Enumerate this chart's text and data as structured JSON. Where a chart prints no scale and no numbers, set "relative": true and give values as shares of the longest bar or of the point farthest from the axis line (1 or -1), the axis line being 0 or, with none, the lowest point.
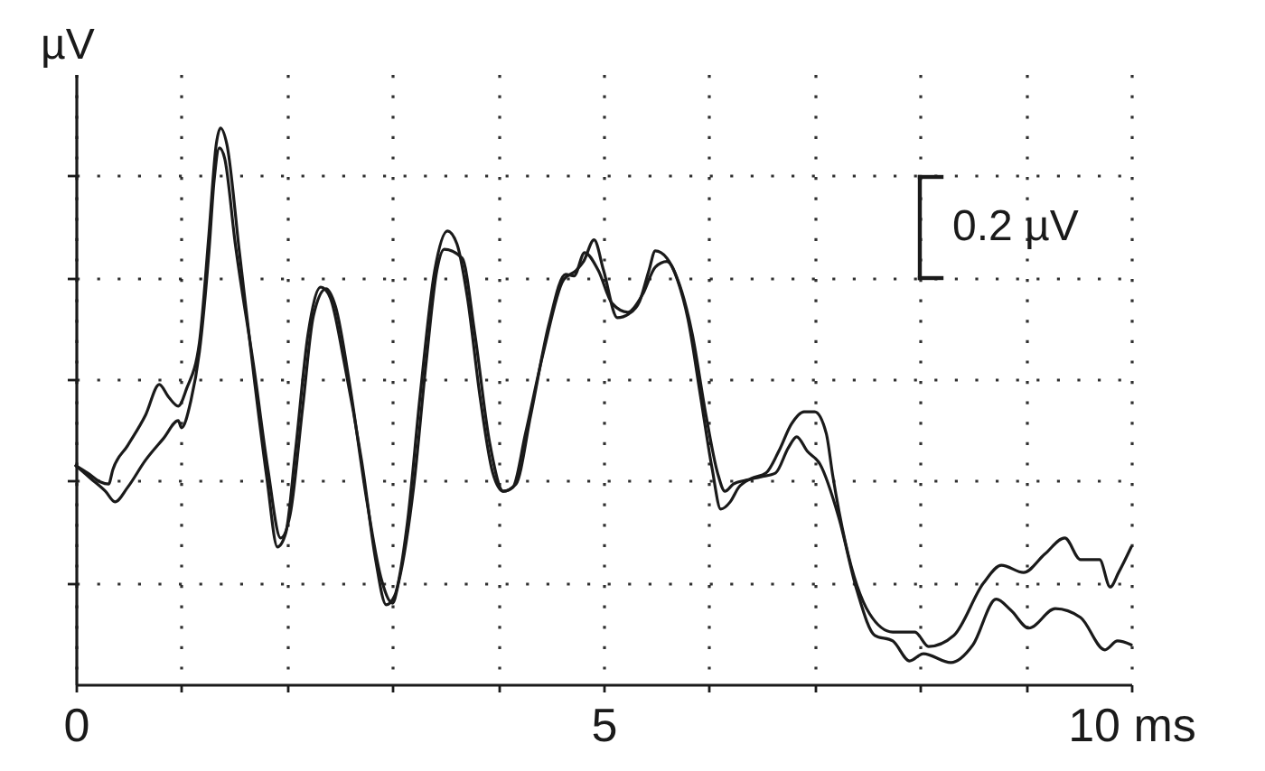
{
  "chart_data": {
    "type": "line",
    "ylabel": "µV",
    "annotations": [
      "0.2 µV"
    ],
    "relative": true,
    "xlim": [
      0,
      10
    ],
    "xticks": [
      0,
      {
        "value": 1,
        "label": null
      },
      {
        "value": 2,
        "label": null
      },
      {
        "value": 3,
        "label": null
      },
      {
        "value": 4,
        "label": null
      },
      5,
      {
        "value": 6,
        "label": null
      },
      {
        "value": 7,
        "label": null
      },
      {
        "value": 8,
        "label": null
      },
      {
        "value": 9,
        "label": null
      },
      {
        "value": 10,
        "label": "10 ms"
      }
    ],
    "grid": true,
    "marker": "none",
    "line_style": "solid",
    "tick_labels": "x",
    "series": [
      {
        "color": "#1a1a1a",
        "x": [
          0,
          0.11,
          0.23,
          0.31,
          0.35,
          0.49,
          0.66,
          0.79,
          0.88,
          0.97,
          1.05,
          1.17,
          1.26,
          1.33,
          1.37,
          1.43,
          1.55,
          1.69,
          1.81,
          1.91,
          1.99,
          2.08,
          2.2,
          2.32,
          2.41,
          2.54,
          2.72,
          2.84,
          2.94,
          3.02,
          3.14,
          3.26,
          3.4,
          3.52,
          3.61,
          3.71,
          3.83,
          3.95,
          4.05,
          4.14,
          4.26,
          4.43,
          4.62,
          4.74,
          4.81,
          4.91,
          5.0,
          5.13,
          5.24,
          5.34,
          5.43,
          5.49,
          5.6,
          5.7,
          5.8,
          5.92,
          6.03,
          6.11,
          6.2,
          6.28,
          6.4,
          6.54,
          6.66,
          6.78,
          6.9,
          7.0,
          7.11,
          7.17,
          7.29,
          7.52,
          7.74,
          7.95,
          8.08,
          8.32,
          8.6,
          8.77,
          8.98,
          9.18,
          9.37,
          9.52,
          9.7,
          9.8,
          9.88,
          10.0
        ],
        "values": [
          0.393,
          0.38,
          0.364,
          0.36,
          0.386,
          0.429,
          0.484,
          0.539,
          0.516,
          0.5,
          0.532,
          0.614,
          0.808,
          0.971,
          1.0,
          0.971,
          0.776,
          0.549,
          0.37,
          0.247,
          0.273,
          0.419,
          0.63,
          0.714,
          0.695,
          0.581,
          0.386,
          0.224,
          0.143,
          0.159,
          0.289,
          0.516,
          0.744,
          0.815,
          0.792,
          0.695,
          0.516,
          0.38,
          0.347,
          0.354,
          0.451,
          0.597,
          0.727,
          0.744,
          0.76,
          0.799,
          0.744,
          0.659,
          0.666,
          0.688,
          0.744,
          0.779,
          0.766,
          0.727,
          0.656,
          0.516,
          0.386,
          0.315,
          0.328,
          0.354,
          0.37,
          0.38,
          0.419,
          0.468,
          0.49,
          0.49,
          0.451,
          0.377,
          0.256,
          0.127,
          0.094,
          0.094,
          0.068,
          0.088,
          0.182,
          0.214,
          0.201,
          0.234,
          0.263,
          0.224,
          0.224,
          0.175,
          0.201,
          0.247
        ]
      },
      {
        "color": "#1a1a1a",
        "x": [
          0,
          0.14,
          0.28,
          0.37,
          0.49,
          0.66,
          0.83,
          0.97,
          1.0,
          1.09,
          1.17,
          1.26,
          1.31,
          1.36,
          1.41,
          1.51,
          1.69,
          1.82,
          1.94,
          2.03,
          2.15,
          2.25,
          2.37,
          2.46,
          2.6,
          2.75,
          2.89,
          3.0,
          3.06,
          3.2,
          3.32,
          3.42,
          3.49,
          3.66,
          3.78,
          3.92,
          4.05,
          4.17,
          4.31,
          4.48,
          4.64,
          4.72,
          4.82,
          4.95,
          5.08,
          5.23,
          5.37,
          5.49,
          5.6,
          5.72,
          5.84,
          5.97,
          6.08,
          6.15,
          6.23,
          6.35,
          6.49,
          6.63,
          6.75,
          6.83,
          6.93,
          7.05,
          7.23,
          7.4,
          7.57,
          7.74,
          7.9,
          8.03,
          8.29,
          8.5,
          8.72,
          8.86,
          9.03,
          9.28,
          9.52,
          9.75,
          9.87,
          10.0
        ],
        "values": [
          0.393,
          0.37,
          0.347,
          0.328,
          0.354,
          0.403,
          0.442,
          0.474,
          0.461,
          0.51,
          0.597,
          0.776,
          0.906,
          0.964,
          0.945,
          0.792,
          0.565,
          0.386,
          0.263,
          0.305,
          0.5,
          0.662,
          0.711,
          0.679,
          0.532,
          0.338,
          0.192,
          0.146,
          0.185,
          0.354,
          0.581,
          0.744,
          0.782,
          0.766,
          0.63,
          0.435,
          0.347,
          0.36,
          0.484,
          0.646,
          0.737,
          0.734,
          0.776,
          0.744,
          0.685,
          0.669,
          0.701,
          0.75,
          0.76,
          0.718,
          0.63,
          0.484,
          0.38,
          0.347,
          0.36,
          0.367,
          0.373,
          0.38,
          0.425,
          0.445,
          0.419,
          0.396,
          0.299,
          0.169,
          0.088,
          0.078,
          0.042,
          0.055,
          0.039,
          0.071,
          0.153,
          0.133,
          0.101,
          0.136,
          0.12,
          0.062,
          0.078,
          0.071
        ]
      }
    ]
  }
}
